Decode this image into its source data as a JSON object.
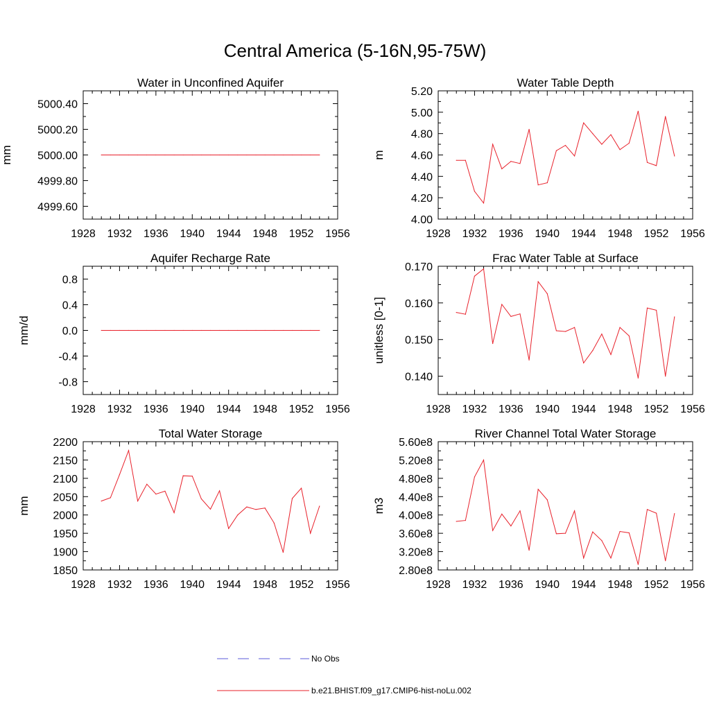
{
  "title": "Central America (5-16N,95-75W)",
  "x_ticks": [
    "1928",
    "1932",
    "1936",
    "1940",
    "1944",
    "1948",
    "1952",
    "1956"
  ],
  "legend": [
    {
      "label": "No Obs",
      "color": "#5a5ad8",
      "style": "dashed"
    },
    {
      "label": "b.e21.BHIST.f09_g17.CMIP6-hist-noLu.002",
      "color": "#e8202a",
      "style": "solid"
    }
  ],
  "chart_data": [
    {
      "type": "line",
      "title": "Water in Unconfined Aquifer",
      "xlabel": "",
      "ylabel": "mm",
      "xlim": [
        1928,
        1956
      ],
      "ylim": [
        4999.5,
        5000.5
      ],
      "y_ticks": [
        4999.6,
        4999.8,
        5000.0,
        5000.2,
        5000.4
      ],
      "y_tick_labels": [
        "4999.60",
        "4999.80",
        "5000.00",
        "5000.20",
        "5000.40"
      ],
      "x": [
        1930,
        1931,
        1932,
        1933,
        1934,
        1935,
        1936,
        1937,
        1938,
        1939,
        1940,
        1941,
        1942,
        1943,
        1944,
        1945,
        1946,
        1947,
        1948,
        1949,
        1950,
        1951,
        1952,
        1953,
        1954
      ],
      "series": [
        {
          "color": "#e8202a",
          "values": [
            5000,
            5000,
            5000,
            5000,
            5000,
            5000,
            5000,
            5000,
            5000,
            5000,
            5000,
            5000,
            5000,
            5000,
            5000,
            5000,
            5000,
            5000,
            5000,
            5000,
            5000,
            5000,
            5000,
            5000,
            5000
          ]
        }
      ]
    },
    {
      "type": "line",
      "title": "Water Table Depth",
      "xlabel": "",
      "ylabel": "m",
      "xlim": [
        1928,
        1956
      ],
      "ylim": [
        4.0,
        5.2
      ],
      "y_ticks": [
        4.0,
        4.2,
        4.4,
        4.6,
        4.8,
        5.0,
        5.2
      ],
      "y_tick_labels": [
        "4.00",
        "4.20",
        "4.40",
        "4.60",
        "4.80",
        "5.00",
        "5.20"
      ],
      "x": [
        1930,
        1931,
        1932,
        1933,
        1934,
        1935,
        1936,
        1937,
        1938,
        1939,
        1940,
        1941,
        1942,
        1943,
        1944,
        1945,
        1946,
        1947,
        1948,
        1949,
        1950,
        1951,
        1952,
        1953,
        1954
      ],
      "series": [
        {
          "color": "#e8202a",
          "values": [
            4.55,
            4.55,
            4.26,
            4.15,
            4.7,
            4.47,
            4.54,
            4.52,
            4.84,
            4.32,
            4.34,
            4.64,
            4.69,
            4.59,
            4.9,
            4.8,
            4.7,
            4.79,
            4.65,
            4.71,
            5.01,
            4.53,
            4.5,
            4.96,
            4.59
          ]
        }
      ]
    },
    {
      "type": "line",
      "title": "Aquifer Recharge Rate",
      "xlabel": "",
      "ylabel": "mm/d",
      "xlim": [
        1928,
        1956
      ],
      "ylim": [
        -1.0,
        1.0
      ],
      "y_ticks": [
        -0.8,
        -0.4,
        0.0,
        0.4,
        0.8
      ],
      "y_tick_labels": [
        "-0.8",
        "-0.4",
        "0.0",
        "0.4",
        "0.8"
      ],
      "x": [
        1930,
        1931,
        1932,
        1933,
        1934,
        1935,
        1936,
        1937,
        1938,
        1939,
        1940,
        1941,
        1942,
        1943,
        1944,
        1945,
        1946,
        1947,
        1948,
        1949,
        1950,
        1951,
        1952,
        1953,
        1954
      ],
      "series": [
        {
          "color": "#e8202a",
          "values": [
            0,
            0,
            0,
            0,
            0,
            0,
            0,
            0,
            0,
            0,
            0,
            0,
            0,
            0,
            0,
            0,
            0,
            0,
            0,
            0,
            0,
            0,
            0,
            0,
            0
          ]
        }
      ]
    },
    {
      "type": "line",
      "title": "Frac Water Table at Surface",
      "xlabel": "",
      "ylabel": "unitless [0-1]",
      "xlim": [
        1928,
        1956
      ],
      "ylim": [
        0.135,
        0.17
      ],
      "y_ticks": [
        0.14,
        0.15,
        0.16,
        0.17
      ],
      "y_tick_labels": [
        "0.140",
        "0.150",
        "0.160",
        "0.170"
      ],
      "x": [
        1930,
        1931,
        1932,
        1933,
        1934,
        1935,
        1936,
        1937,
        1938,
        1939,
        1940,
        1941,
        1942,
        1943,
        1944,
        1945,
        1946,
        1947,
        1948,
        1949,
        1950,
        1951,
        1952,
        1953,
        1954
      ],
      "series": [
        {
          "color": "#e8202a",
          "values": [
            0.1574,
            0.1569,
            0.1673,
            0.1693,
            0.1489,
            0.1596,
            0.1563,
            0.157,
            0.1444,
            0.1658,
            0.1625,
            0.1524,
            0.1522,
            0.1533,
            0.1436,
            0.147,
            0.1515,
            0.1459,
            0.1533,
            0.151,
            0.1395,
            0.1586,
            0.158,
            0.14,
            0.1562
          ]
        }
      ]
    },
    {
      "type": "line",
      "title": "Total Water Storage",
      "xlabel": "",
      "ylabel": "mm",
      "xlim": [
        1928,
        1956
      ],
      "ylim": [
        1850,
        2200
      ],
      "y_ticks": [
        1850,
        1900,
        1950,
        2000,
        2050,
        2100,
        2150,
        2200
      ],
      "y_tick_labels": [
        "1850",
        "1900",
        "1950",
        "2000",
        "2050",
        "2100",
        "2150",
        "2200"
      ],
      "x": [
        1930,
        1931,
        1932,
        1933,
        1934,
        1935,
        1936,
        1937,
        1938,
        1939,
        1940,
        1941,
        1942,
        1943,
        1944,
        1945,
        1946,
        1947,
        1948,
        1949,
        1950,
        1951,
        1952,
        1953,
        1954
      ],
      "series": [
        {
          "color": "#e8202a",
          "values": [
            2038,
            2047,
            2110,
            2176,
            2038,
            2084,
            2057,
            2065,
            2006,
            2107,
            2106,
            2044,
            2016,
            2066,
            1963,
            2000,
            2022,
            2015,
            2019,
            1978,
            1898,
            2045,
            2073,
            1950,
            2024
          ]
        }
      ]
    },
    {
      "type": "line",
      "title": "River Channel Total Water Storage",
      "xlabel": "",
      "ylabel": "m3",
      "xlim": [
        1928,
        1956
      ],
      "ylim": [
        280000000.0,
        560000000.0
      ],
      "y_ticks": [
        280000000.0,
        320000000.0,
        360000000.0,
        400000000.0,
        440000000.0,
        480000000.0,
        520000000.0,
        560000000.0
      ],
      "y_tick_labels": [
        "2.80e8",
        "3.20e8",
        "3.60e8",
        "4.00e8",
        "4.40e8",
        "4.80e8",
        "5.20e8",
        "5.60e8"
      ],
      "x": [
        1930,
        1931,
        1932,
        1933,
        1934,
        1935,
        1936,
        1937,
        1938,
        1939,
        1940,
        1941,
        1942,
        1943,
        1944,
        1945,
        1946,
        1947,
        1948,
        1949,
        1950,
        1951,
        1952,
        1953,
        1954
      ],
      "series": [
        {
          "color": "#e8202a",
          "values": [
            386000000.0,
            388000000.0,
            483000000.0,
            520000000.0,
            366000000.0,
            402000000.0,
            376000000.0,
            409000000.0,
            323000000.0,
            456000000.0,
            433000000.0,
            359000000.0,
            360000000.0,
            409000000.0,
            306000000.0,
            363000000.0,
            344000000.0,
            306000000.0,
            364000000.0,
            361000000.0,
            292000000.0,
            412000000.0,
            404000000.0,
            300000000.0,
            403000000.0
          ]
        }
      ]
    }
  ]
}
